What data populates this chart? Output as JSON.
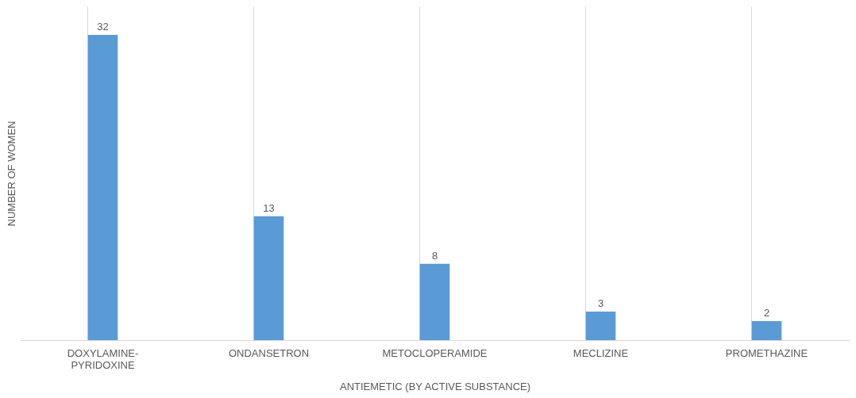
{
  "chart_data": {
    "type": "bar",
    "xlabel": "ANTIEMETIC (BY ACTIVE SUBSTANCE)",
    "ylabel": "NUMBER OF WOMEN",
    "categories": [
      "DOXYLAMINE-PYRIDOXINE",
      "ONDANSETRON",
      "METOCLOPERAMIDE",
      "MECLIZINE",
      "PROMETHAZINE"
    ],
    "values": [
      32,
      13,
      8,
      3,
      2
    ],
    "color": "#5b9bd5",
    "ylim": [
      0,
      35
    ],
    "data_labels": true,
    "grid": "x",
    "tick_labels": "x"
  }
}
